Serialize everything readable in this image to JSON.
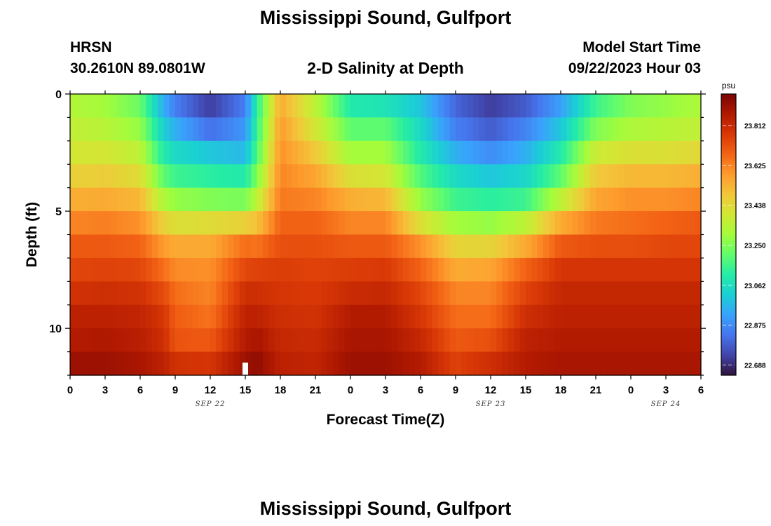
{
  "title": "Mississippi Sound, Gulfport",
  "station_id": "HRSN",
  "station_coords": "30.2610N  89.0801W",
  "subtitle": "2-D Salinity at Depth",
  "model_label": "Model Start Time",
  "model_time": "09/22/2023 Hour 03",
  "footer_title": "Mississippi Sound, Gulfport",
  "chart_data": {
    "type": "heatmap",
    "xlabel": "Forecast Time(Z)",
    "ylabel": "Depth (ft)",
    "x_hours": [
      0,
      54
    ],
    "x_tick_step_hours": 3,
    "x_tick_labels": [
      "0",
      "3",
      "6",
      "9",
      "12",
      "15",
      "18",
      "21",
      "0",
      "3",
      "6",
      "9",
      "12",
      "15",
      "18",
      "21",
      "0",
      "3",
      "6"
    ],
    "date_labels": [
      {
        "text": "SEP 22",
        "hour": 12
      },
      {
        "text": "SEP 23",
        "hour": 36
      },
      {
        "text": "SEP 24",
        "hour": 51
      }
    ],
    "y_range": [
      0,
      12
    ],
    "y_ticks": [
      0,
      5,
      10
    ],
    "y_reversed": true,
    "current_time_marker_hour": 15,
    "colorbar": {
      "unit": "psu",
      "min": 22.64,
      "max": 23.96,
      "tick_values": [
        22.688,
        22.875,
        23.062,
        23.25,
        23.438,
        23.625,
        23.812
      ],
      "tick_labels": [
        "22.688",
        "22.875",
        "23.062",
        "23.250",
        "23.438",
        "23.625",
        "23.812"
      ],
      "colors": [
        "#30123b",
        "#4145ab",
        "#4675ed",
        "#39a2fc",
        "#1bcfd4",
        "#24eca6",
        "#61fc6c",
        "#a4fc3b",
        "#d1e834",
        "#f3c63a",
        "#fe9b2d",
        "#f36315",
        "#d93806",
        "#b11901",
        "#7a0403"
      ]
    },
    "depth_levels_ft": [
      0.25,
      1.25,
      2.25,
      3.25,
      4.25,
      5.25,
      6.25,
      7.25,
      8.25,
      9.25,
      10.25,
      11.25
    ],
    "profile_hours": [
      0,
      3,
      6,
      8,
      9,
      12,
      15,
      16,
      18,
      21,
      24,
      27,
      30,
      33,
      36,
      39,
      42,
      45,
      48,
      51,
      54
    ],
    "salinity_by_hour": [
      [
        23.33,
        23.36,
        23.4,
        23.46,
        23.54,
        23.62,
        23.7,
        23.74,
        23.79,
        23.84,
        23.86,
        23.9
      ],
      [
        23.3,
        23.34,
        23.4,
        23.47,
        23.55,
        23.63,
        23.7,
        23.75,
        23.8,
        23.84,
        23.87,
        23.9
      ],
      [
        23.22,
        23.28,
        23.35,
        23.43,
        23.52,
        23.6,
        23.68,
        23.74,
        23.79,
        23.83,
        23.85,
        23.88
      ],
      [
        22.95,
        23.02,
        23.1,
        23.2,
        23.32,
        23.46,
        23.58,
        23.66,
        23.73,
        23.78,
        23.8,
        23.84
      ],
      [
        22.85,
        22.95,
        23.05,
        23.15,
        23.28,
        23.42,
        23.55,
        23.61,
        23.66,
        23.69,
        23.71,
        23.79
      ],
      [
        22.72,
        22.82,
        23.0,
        23.12,
        23.25,
        23.43,
        23.55,
        23.6,
        23.62,
        23.65,
        23.7,
        23.78
      ],
      [
        22.85,
        22.9,
        22.97,
        23.1,
        23.24,
        23.46,
        23.66,
        23.74,
        23.8,
        23.84,
        23.86,
        23.9
      ],
      [
        23.12,
        23.14,
        23.18,
        23.25,
        23.35,
        23.5,
        23.65,
        23.75,
        23.8,
        23.84,
        23.88,
        23.92
      ],
      [
        23.55,
        23.58,
        23.6,
        23.62,
        23.64,
        23.68,
        23.72,
        23.76,
        23.78,
        23.8,
        23.82,
        23.84
      ],
      [
        23.35,
        23.4,
        23.48,
        23.56,
        23.62,
        23.68,
        23.72,
        23.75,
        23.77,
        23.79,
        23.81,
        23.83
      ],
      [
        23.1,
        23.2,
        23.3,
        23.42,
        23.54,
        23.62,
        23.7,
        23.76,
        23.81,
        23.86,
        23.88,
        23.9
      ],
      [
        23.08,
        23.2,
        23.3,
        23.4,
        23.52,
        23.62,
        23.7,
        23.77,
        23.82,
        23.86,
        23.88,
        23.9
      ],
      [
        23.0,
        23.05,
        23.1,
        23.18,
        23.28,
        23.42,
        23.6,
        23.68,
        23.74,
        23.78,
        23.82,
        23.86
      ],
      [
        22.8,
        22.85,
        22.95,
        23.05,
        23.15,
        23.3,
        23.45,
        23.55,
        23.62,
        23.66,
        23.7,
        23.75
      ],
      [
        22.72,
        22.78,
        22.88,
        23.0,
        23.12,
        23.28,
        23.45,
        23.56,
        23.62,
        23.66,
        23.72,
        23.8
      ],
      [
        22.78,
        22.86,
        22.95,
        23.04,
        23.15,
        23.35,
        23.55,
        23.68,
        23.75,
        23.8,
        23.84,
        23.86
      ],
      [
        22.92,
        23.0,
        23.1,
        23.2,
        23.35,
        23.55,
        23.7,
        23.78,
        23.82,
        23.84,
        23.86,
        23.88
      ],
      [
        23.15,
        23.25,
        23.38,
        23.48,
        23.56,
        23.64,
        23.72,
        23.78,
        23.82,
        23.84,
        23.86,
        23.88
      ],
      [
        23.25,
        23.32,
        23.42,
        23.52,
        23.6,
        23.66,
        23.72,
        23.78,
        23.82,
        23.84,
        23.86,
        23.88
      ],
      [
        23.28,
        23.34,
        23.42,
        23.52,
        23.6,
        23.68,
        23.74,
        23.78,
        23.82,
        23.84,
        23.86,
        23.88
      ],
      [
        23.32,
        23.36,
        23.44,
        23.54,
        23.62,
        23.7,
        23.74,
        23.78,
        23.82,
        23.84,
        23.86,
        23.88
      ]
    ]
  }
}
